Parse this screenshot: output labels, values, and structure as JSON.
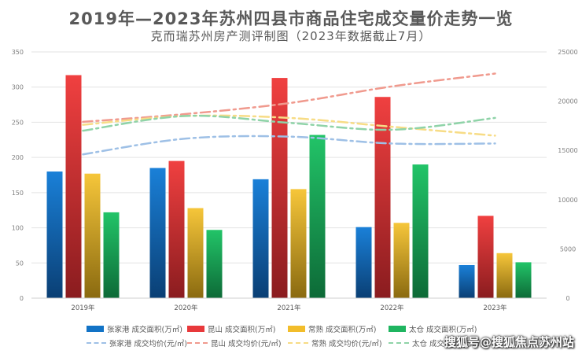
{
  "title": "2019年—2023年苏州四县市商品住宅成交量价走势一览",
  "subtitle": "克而瑞苏州房产测评制图（2023年数据截止7月）",
  "watermark": "搜狐号@搜狐焦点苏州站",
  "colors": {
    "zjg": "#1273c6",
    "ks": "#e8393b",
    "cs": "#f2bd2b",
    "tc": "#1fb560",
    "zjg_line": "#9ec0e6",
    "ks_line": "#f09a8e",
    "cs_line": "#f7dc86",
    "tc_line": "#8fd3a8"
  },
  "chart_data": {
    "type": "bar",
    "categories": [
      "2019年",
      "2020年",
      "2021年",
      "2022年",
      "2023年"
    ],
    "series": [
      {
        "name": "张家港 成交面积(万㎡)",
        "key": "zjg",
        "values": [
          180,
          185,
          169,
          101,
          47
        ]
      },
      {
        "name": "昆山 成交面积(万㎡)",
        "key": "ks",
        "values": [
          317,
          195,
          313,
          286,
          117
        ]
      },
      {
        "name": "常熟 成交面积(万㎡)",
        "key": "cs",
        "values": [
          177,
          128,
          155,
          107,
          64
        ]
      },
      {
        "name": "太仓 成交面积(万㎡)",
        "key": "tc",
        "values": [
          122,
          97,
          232,
          190,
          51
        ]
      }
    ],
    "line_series": [
      {
        "name": "张家港 成交均价(元/㎡)",
        "key": "zjg_line",
        "values": [
          14600,
          16200,
          16400,
          15700,
          15700
        ]
      },
      {
        "name": "昆山 成交均价(元/㎡)",
        "key": "ks_line",
        "values": [
          17900,
          18700,
          19800,
          21500,
          22800
        ]
      },
      {
        "name": "常熟 成交均价(元/㎡)",
        "key": "cs_line",
        "values": [
          17600,
          18500,
          18300,
          17400,
          16500
        ]
      },
      {
        "name": "太仓 成交均价(元/㎡)",
        "key": "tc_line",
        "values": [
          17000,
          18500,
          17800,
          17100,
          18300
        ]
      }
    ],
    "ylim": [
      0,
      350
    ],
    "y_ticks": [
      "0",
      "50",
      "100",
      "150",
      "200",
      "250",
      "300",
      "350"
    ],
    "y2lim": [
      0,
      25000
    ],
    "y2_ticks": [
      "0",
      "5000",
      "10000",
      "15000",
      "20000",
      "25000"
    ],
    "legend_position": "bottom"
  }
}
